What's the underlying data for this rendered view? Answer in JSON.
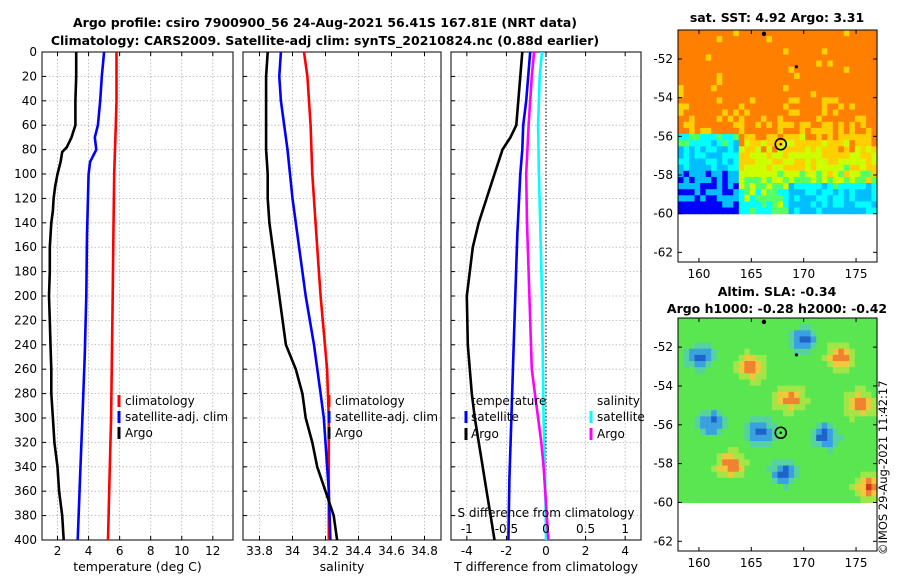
{
  "titles": {
    "line1": "Argo profile: csiro 7900900_56 24-Aug-2021 56.41S 167.81E (NRT data)",
    "line2": "Climatology: CARS2009. Satellite-adj clim: synTS_20210824.nc (0.88d earlier)"
  },
  "credit": "©IMOS 29-Aug-2021 11:42:17",
  "colors": {
    "argo": "#000000",
    "sat_adj": "#0000ff",
    "clim": "#ff0000",
    "s_sat": "#00ffff",
    "s_argo": "#ff00ff",
    "grid": "#b4b4b4"
  },
  "chart_data": [
    {
      "type": "line",
      "xlabel": "temperature (deg C)",
      "ylabel": "",
      "xlim": [
        1,
        13.3
      ],
      "ylim": [
        400,
        0
      ],
      "xticks": [
        "2",
        "4",
        "6",
        "8",
        "10",
        "12"
      ],
      "yticks": [
        "0",
        "20",
        "40",
        "60",
        "80",
        "100",
        "120",
        "140",
        "160",
        "180",
        "200",
        "220",
        "240",
        "260",
        "280",
        "300",
        "320",
        "340",
        "360",
        "380",
        "400"
      ],
      "legend": [
        "climatology",
        "satellite-adj. clim",
        "Argo"
      ],
      "legend_position": "lower-right",
      "series": [
        {
          "name": "climatology",
          "color": "#ff0000",
          "depth": [
            0,
            20,
            40,
            60,
            80,
            100,
            150,
            200,
            250,
            300,
            350,
            400
          ],
          "values": [
            5.8,
            5.8,
            5.8,
            5.75,
            5.7,
            5.65,
            5.6,
            5.55,
            5.5,
            5.45,
            5.35,
            5.25
          ]
        },
        {
          "name": "satellite-adj. clim",
          "color": "#0000ff",
          "depth": [
            0,
            20,
            40,
            60,
            70,
            80,
            90,
            100,
            150,
            200,
            250,
            300,
            350,
            400
          ],
          "values": [
            5.0,
            4.85,
            4.75,
            4.6,
            4.4,
            4.5,
            4.1,
            4.0,
            3.9,
            3.85,
            3.75,
            3.6,
            3.45,
            3.3
          ]
        },
        {
          "name": "Argo",
          "color": "#000000",
          "depth": [
            0,
            20,
            40,
            60,
            70,
            78,
            82,
            90,
            100,
            110,
            120,
            130,
            140,
            160,
            180,
            200,
            220,
            240,
            260,
            280,
            300,
            320,
            340,
            360,
            380,
            400
          ],
          "values": [
            3.2,
            3.2,
            3.15,
            3.15,
            2.9,
            2.6,
            2.3,
            2.2,
            2.0,
            1.85,
            1.75,
            1.7,
            1.6,
            1.5,
            1.5,
            1.45,
            1.5,
            1.55,
            1.6,
            1.6,
            1.7,
            1.8,
            2.0,
            2.1,
            2.3,
            2.4
          ]
        }
      ]
    },
    {
      "type": "line",
      "xlabel": "salinity",
      "ylabel": "",
      "xlim": [
        33.7,
        34.9
      ],
      "ylim": [
        400,
        0
      ],
      "xticks": [
        "33.8",
        "34",
        "34.2",
        "34.4",
        "34.6",
        "34.8"
      ],
      "legend": [
        "climatology",
        "satellite-adj. clim",
        "Argo"
      ],
      "legend_position": "lower-right",
      "series": [
        {
          "name": "climatology",
          "color": "#ff0000",
          "depth": [
            0,
            10,
            20,
            40,
            60,
            100,
            160,
            200,
            260,
            300,
            350,
            400
          ],
          "values": [
            34.07,
            34.08,
            34.09,
            34.1,
            34.11,
            34.12,
            34.15,
            34.17,
            34.21,
            34.22,
            34.22,
            34.22
          ]
        },
        {
          "name": "satellite-adj. clim",
          "color": "#0000ff",
          "depth": [
            0,
            20,
            40,
            80,
            120,
            160,
            200,
            240,
            280,
            300,
            320,
            360,
            400
          ],
          "values": [
            33.93,
            33.92,
            33.93,
            33.97,
            34.0,
            34.04,
            34.08,
            34.13,
            34.17,
            34.19,
            34.2,
            34.22,
            34.23
          ]
        },
        {
          "name": "Argo",
          "color": "#000000",
          "depth": [
            0,
            20,
            40,
            60,
            80,
            100,
            120,
            140,
            160,
            180,
            200,
            220,
            240,
            260,
            280,
            300,
            320,
            340,
            360,
            380,
            400
          ],
          "values": [
            33.85,
            33.84,
            33.84,
            33.84,
            33.84,
            33.85,
            33.85,
            33.86,
            33.88,
            33.9,
            33.92,
            33.94,
            33.96,
            34.02,
            34.06,
            34.08,
            34.12,
            34.15,
            34.2,
            34.25,
            34.27
          ]
        }
      ]
    },
    {
      "type": "line",
      "xlabel": "T difference from climatology",
      "inner_label": "S difference from climatology",
      "ylabel": "",
      "xlim": [
        -4.8,
        4.8
      ],
      "ylim": [
        400,
        0
      ],
      "xticks": [
        "-4",
        "-2",
        "0",
        "2",
        "4"
      ],
      "xticks_top_values": [
        -4,
        -2,
        0,
        2,
        4
      ],
      "s_ticks": [
        "-1",
        "-0.5",
        "0",
        "0.5",
        "1"
      ],
      "s_ticks_values": [
        -1,
        -0.5,
        0,
        0.5,
        1
      ],
      "legend_left_title": "temperature",
      "legend_left": [
        "satellite",
        "Argo"
      ],
      "legend_right_title": "salinity",
      "legend_right": [
        "satellite",
        "Argo"
      ],
      "series": [
        {
          "name": "T satellite",
          "color": "#0000ff",
          "depth": [
            0,
            20,
            40,
            60,
            80,
            100,
            150,
            200,
            250,
            300,
            350,
            400
          ],
          "values": [
            -0.8,
            -0.9,
            -1.0,
            -1.15,
            -1.2,
            -1.3,
            -1.45,
            -1.55,
            -1.65,
            -1.75,
            -1.85,
            -1.9
          ]
        },
        {
          "name": "T Argo",
          "color": "#000000",
          "depth": [
            0,
            20,
            40,
            60,
            70,
            80,
            90,
            100,
            120,
            140,
            160,
            200,
            240,
            280,
            300,
            340,
            360,
            380,
            400
          ],
          "values": [
            -1.2,
            -1.3,
            -1.4,
            -1.5,
            -1.8,
            -2.2,
            -2.4,
            -2.6,
            -3.0,
            -3.4,
            -3.7,
            -4.0,
            -3.95,
            -3.75,
            -3.6,
            -3.2,
            -3.0,
            -2.8,
            -2.6
          ]
        },
        {
          "name": "S satellite",
          "color": "#00ffff",
          "depth": [
            0,
            20,
            60,
            100,
            150,
            200,
            250,
            300,
            350,
            400
          ],
          "values": [
            -0.05,
            -0.08,
            -0.1,
            -0.09,
            -0.07,
            -0.05,
            -0.04,
            -0.03,
            -0.01,
            0.0
          ]
        },
        {
          "name": "S Argo",
          "color": "#ff00ff",
          "depth": [
            0,
            20,
            60,
            100,
            140,
            180,
            220,
            260,
            280,
            300,
            320,
            340,
            360,
            380,
            400
          ],
          "values": [
            -0.15,
            -0.18,
            -0.22,
            -0.25,
            -0.24,
            -0.22,
            -0.2,
            -0.18,
            -0.14,
            -0.1,
            -0.06,
            -0.03,
            -0.01,
            0.01,
            0.03
          ]
        }
      ]
    },
    {
      "type": "heatmap",
      "title": "sat. SST: 4.92 Argo: 3.31",
      "xlim": [
        158,
        177
      ],
      "ylim": [
        -62.5,
        -50.5
      ],
      "xticks": [
        "160",
        "165",
        "170",
        "175"
      ],
      "xtick_values": [
        160,
        165,
        170,
        175
      ],
      "yticks": [
        "-52",
        "-54",
        "-56",
        "-58",
        "-60",
        "-62"
      ],
      "ytick_values": [
        -52,
        -54,
        -56,
        -58,
        -60,
        -62
      ],
      "data_lat_range": [
        -60,
        -50.5
      ],
      "argo_position": [
        167.81,
        -56.41
      ]
    },
    {
      "type": "heatmap",
      "title_line1": "Altim. SLA: -0.34",
      "title_line2": "Argo h1000: -0.28 h2000: -0.42",
      "xlim": [
        158,
        177
      ],
      "ylim": [
        -62.5,
        -50.5
      ],
      "xticks": [
        "160",
        "165",
        "170",
        "175"
      ],
      "xtick_values": [
        160,
        165,
        170,
        175
      ],
      "yticks": [
        "-52",
        "-54",
        "-56",
        "-58",
        "-60",
        "-62"
      ],
      "ytick_values": [
        -52,
        -54,
        -56,
        -58,
        -60,
        -62
      ],
      "data_lat_range": [
        -60,
        -50.5
      ],
      "argo_position": [
        167.81,
        -56.41
      ]
    }
  ]
}
